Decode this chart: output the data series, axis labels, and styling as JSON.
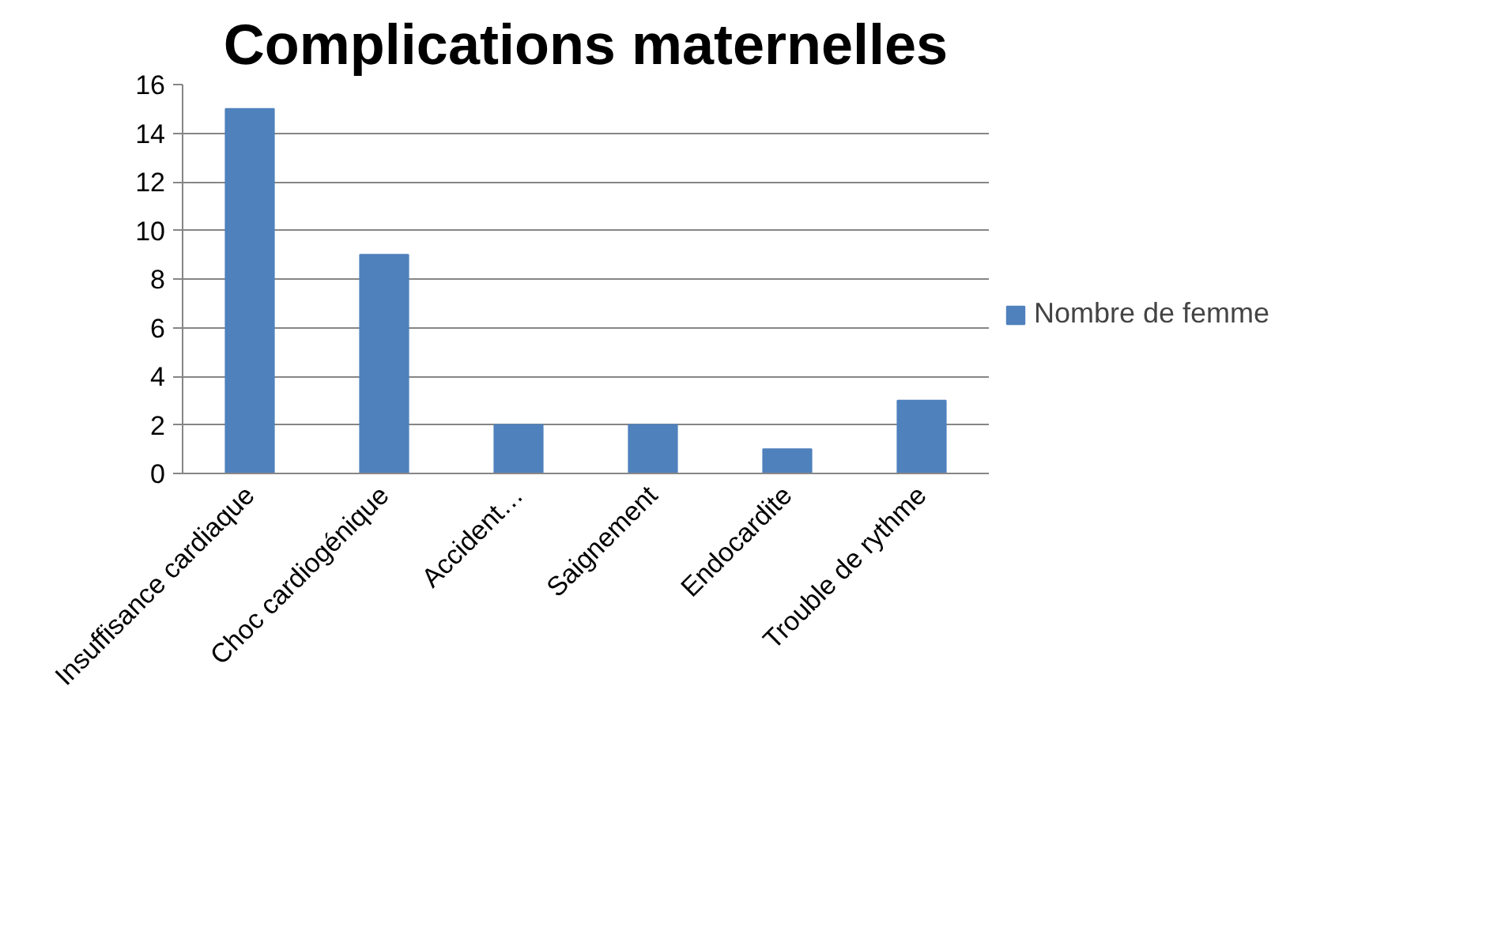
{
  "chart_data": {
    "type": "bar",
    "title": "Complications maternelles",
    "categories": [
      "Insuffisance cardiaque",
      "Choc cardiogénique",
      "Accident…",
      "Saignement",
      "Endocardite",
      "Trouble de rythme"
    ],
    "series": [
      {
        "name": "Nombre de femme",
        "color": "#4f81bd",
        "values": [
          15,
          9,
          2,
          2,
          1,
          3
        ]
      }
    ],
    "ylim": [
      0,
      16
    ],
    "yticks": [
      0,
      2,
      4,
      6,
      8,
      10,
      12,
      14,
      16
    ],
    "grid": "y",
    "legend": "right"
  }
}
